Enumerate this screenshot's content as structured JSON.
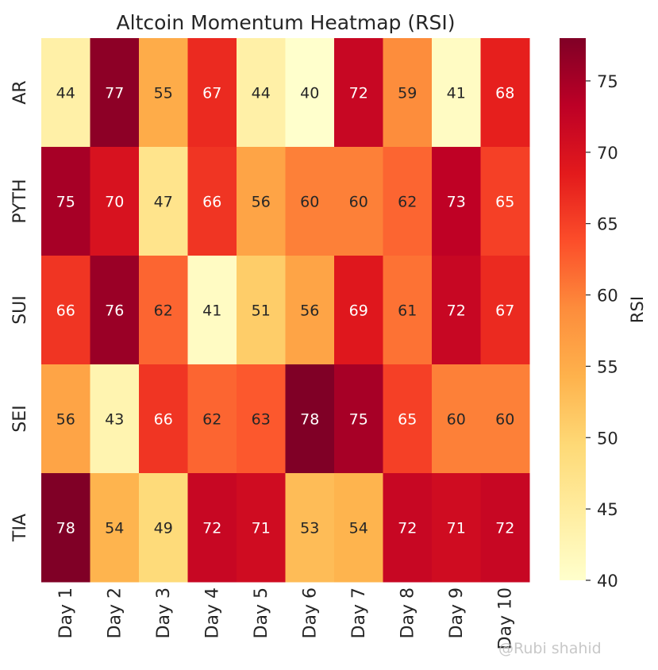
{
  "chart_data": {
    "type": "heatmap",
    "title": "Altcoin Momentum Heatmap (RSI)",
    "rows": [
      "AR",
      "PYTH",
      "SUI",
      "SEI",
      "TIA"
    ],
    "columns": [
      "Day 1",
      "Day 2",
      "Day 3",
      "Day 4",
      "Day 5",
      "Day 6",
      "Day 7",
      "Day 8",
      "Day 9",
      "Day 10"
    ],
    "values": [
      [
        44,
        77,
        55,
        67,
        44,
        40,
        72,
        59,
        41,
        68
      ],
      [
        75,
        70,
        47,
        66,
        56,
        60,
        60,
        62,
        73,
        65
      ],
      [
        66,
        76,
        62,
        41,
        51,
        56,
        69,
        61,
        72,
        67
      ],
      [
        56,
        43,
        66,
        62,
        63,
        78,
        75,
        65,
        60,
        60
      ],
      [
        78,
        54,
        49,
        72,
        71,
        53,
        54,
        72,
        71,
        72
      ]
    ],
    "colorbar": {
      "label": "RSI",
      "min": 40,
      "max": 78,
      "ticks": [
        40,
        45,
        50,
        55,
        60,
        65,
        70,
        75
      ]
    },
    "colormap": "YlOrRd",
    "annotations": true
  },
  "watermark": {
    "text": "@Rubi shahid"
  }
}
